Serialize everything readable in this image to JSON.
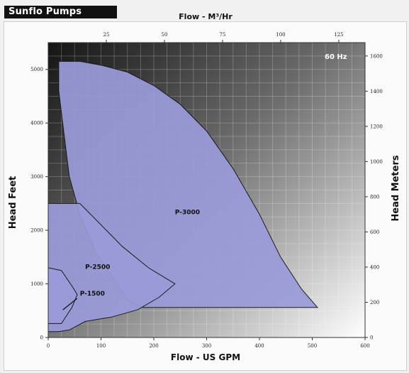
{
  "brand": {
    "label": "Sunflo Pumps"
  },
  "chart_data": {
    "type": "area",
    "frequency_label": "60 Hz",
    "x_axis_bottom": {
      "label": "Flow - US GPM",
      "range": [
        0,
        600
      ],
      "ticks": [
        0,
        100,
        200,
        300,
        400,
        500,
        600
      ]
    },
    "x_axis_top": {
      "label": "Flow - M³/Hr",
      "range": [
        0,
        136.3
      ],
      "ticks": [
        25,
        50,
        75,
        100,
        125
      ]
    },
    "y_axis_left": {
      "label": "Head Feet",
      "range": [
        0,
        5500
      ],
      "ticks": [
        0,
        1000,
        2000,
        3000,
        4000,
        5000
      ]
    },
    "y_axis_right": {
      "label": "Head Meters",
      "range": [
        0,
        1676
      ],
      "ticks": [
        0,
        200,
        400,
        600,
        800,
        1000,
        1200,
        1400,
        1600
      ]
    },
    "grid": true,
    "series": [
      {
        "name": "P-3000",
        "color": "#9a9ad8",
        "label_at": [
          240,
          2300
        ],
        "outline": [
          [
            20,
            5150
          ],
          [
            60,
            5150
          ],
          [
            100,
            5080
          ],
          [
            150,
            4950
          ],
          [
            200,
            4700
          ],
          [
            250,
            4350
          ],
          [
            300,
            3850
          ],
          [
            350,
            3150
          ],
          [
            400,
            2300
          ],
          [
            440,
            1500
          ],
          [
            480,
            900
          ],
          [
            510,
            560
          ],
          [
            180,
            560
          ],
          [
            165,
            620
          ],
          [
            150,
            700
          ],
          [
            90,
            1600
          ],
          [
            60,
            2300
          ],
          [
            40,
            3000
          ],
          [
            30,
            3800
          ],
          [
            20,
            4600
          ]
        ]
      },
      {
        "name": "P-2500",
        "color": "#9a9ad8",
        "label_at": [
          70,
          1280
        ],
        "outline": [
          [
            0,
            2500
          ],
          [
            60,
            2500
          ],
          [
            100,
            2100
          ],
          [
            140,
            1700
          ],
          [
            190,
            1300
          ],
          [
            240,
            1000
          ],
          [
            210,
            750
          ],
          [
            170,
            520
          ],
          [
            120,
            380
          ],
          [
            70,
            300
          ],
          [
            40,
            140
          ],
          [
            20,
            110
          ],
          [
            0,
            110
          ]
        ]
      },
      {
        "name": "P-1500",
        "color": "#9a9ad8",
        "label_at": [
          60,
          780
        ],
        "outline": [
          [
            0,
            1300
          ],
          [
            25,
            1250
          ],
          [
            45,
            960
          ],
          [
            55,
            800
          ],
          [
            45,
            560
          ],
          [
            25,
            260
          ],
          [
            0,
            260
          ]
        ]
      }
    ]
  }
}
